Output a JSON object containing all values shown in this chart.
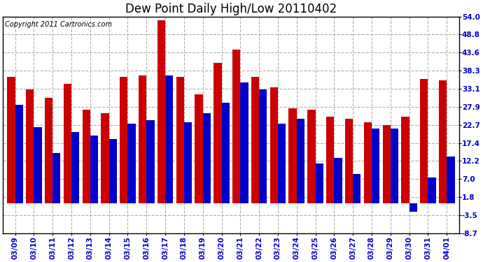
{
  "title": "Dew Point Daily High/Low 20110402",
  "copyright": "Copyright 2011 Cartronics.com",
  "dates": [
    "03/09",
    "03/10",
    "03/11",
    "03/12",
    "03/13",
    "03/14",
    "03/15",
    "03/16",
    "03/17",
    "03/18",
    "03/19",
    "03/20",
    "03/21",
    "03/22",
    "03/23",
    "03/24",
    "03/25",
    "03/26",
    "03/27",
    "03/28",
    "03/29",
    "03/30",
    "03/31",
    "04/01"
  ],
  "highs": [
    36.5,
    33.0,
    30.5,
    34.5,
    27.0,
    26.0,
    36.5,
    37.0,
    53.0,
    36.5,
    31.5,
    40.5,
    44.5,
    36.5,
    33.5,
    27.5,
    27.0,
    25.0,
    24.5,
    23.5,
    22.5,
    25.0,
    36.0,
    35.5
  ],
  "lows": [
    28.5,
    22.0,
    14.5,
    20.5,
    19.5,
    18.5,
    23.0,
    24.0,
    37.0,
    23.5,
    26.0,
    29.0,
    35.0,
    33.0,
    23.0,
    24.5,
    11.5,
    13.0,
    8.5,
    21.5,
    21.5,
    -2.5,
    7.5,
    13.5
  ],
  "ylim_min": -8.7,
  "ylim_max": 54.0,
  "yticks": [
    54.0,
    48.8,
    43.6,
    38.3,
    33.1,
    27.9,
    22.7,
    17.4,
    12.2,
    7.0,
    1.8,
    -3.5,
    -8.7
  ],
  "high_color": "#cc0000",
  "low_color": "#0000cc",
  "bg_color": "#ffffff",
  "grid_color": "#b0b0b0",
  "bar_width": 0.42,
  "title_fontsize": 12,
  "tick_fontsize": 7.5,
  "copyright_fontsize": 7
}
